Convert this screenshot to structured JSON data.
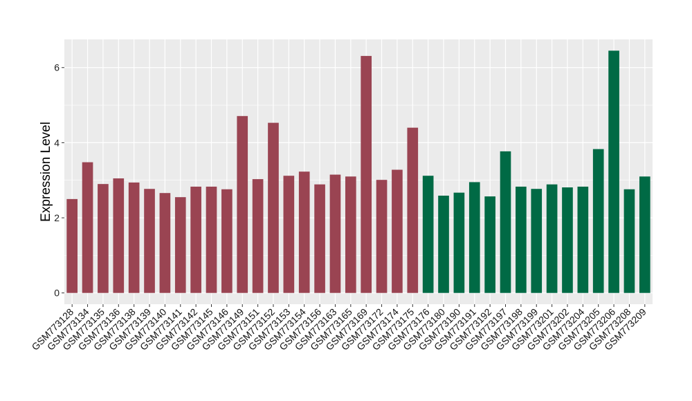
{
  "chart_data": {
    "type": "bar",
    "title": "",
    "xlabel": "",
    "ylabel": "Expression Level",
    "ylim": [
      -0.3,
      6.75
    ],
    "yticks": [
      0,
      2,
      4,
      6
    ],
    "grid": true,
    "legend": "none",
    "panel_background": "#EBEBEB",
    "grid_color": "#FFFFFF",
    "categories": [
      "GSM773128",
      "GSM773134",
      "GSM773135",
      "GSM773136",
      "GSM773138",
      "GSM773139",
      "GSM773140",
      "GSM773141",
      "GSM773142",
      "GSM773145",
      "GSM773146",
      "GSM773149",
      "GSM773151",
      "GSM773152",
      "GSM773153",
      "GSM773154",
      "GSM773156",
      "GSM773163",
      "GSM773165",
      "GSM773169",
      "GSM773172",
      "GSM773174",
      "GSM773175",
      "GSM773176",
      "GSM773180",
      "GSM773190",
      "GSM773191",
      "GSM773192",
      "GSM773197",
      "GSM773198",
      "GSM773199",
      "GSM773201",
      "GSM773202",
      "GSM773204",
      "GSM773205",
      "GSM773206",
      "GSM773208",
      "GSM773209"
    ],
    "values": [
      2.5,
      3.48,
      2.9,
      3.05,
      2.94,
      2.77,
      2.66,
      2.55,
      2.83,
      2.83,
      2.76,
      4.71,
      3.03,
      4.53,
      3.12,
      3.23,
      2.89,
      3.15,
      3.1,
      6.31,
      3.01,
      3.28,
      4.4,
      3.12,
      2.59,
      2.67,
      2.95,
      2.57,
      3.77,
      2.83,
      2.77,
      2.89,
      2.81,
      2.83,
      3.83,
      6.45,
      2.76,
      3.1
    ],
    "groups": [
      0,
      0,
      0,
      0,
      0,
      0,
      0,
      0,
      0,
      0,
      0,
      0,
      0,
      0,
      0,
      0,
      0,
      0,
      0,
      0,
      0,
      0,
      0,
      1,
      1,
      1,
      1,
      1,
      1,
      1,
      1,
      1,
      1,
      1,
      1,
      1,
      1,
      1
    ],
    "group_colors": [
      "#9A4452",
      "#006A45"
    ]
  }
}
